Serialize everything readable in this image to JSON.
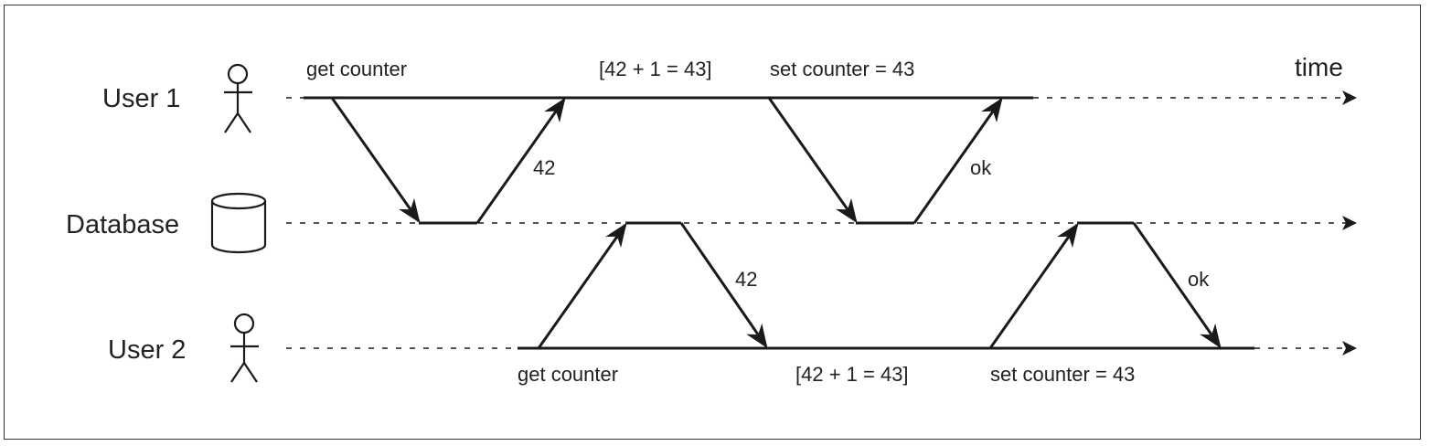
{
  "rows": {
    "user1": "User 1",
    "database": "Database",
    "user2": "User 2"
  },
  "axis": {
    "time": "time"
  },
  "user1_messages": {
    "get": "get counter",
    "compute": "[42 + 1 = 43]",
    "set": "set counter = 43",
    "response_get": "42",
    "response_set": "ok"
  },
  "user2_messages": {
    "get": "get counter",
    "compute": "[42 + 1 = 43]",
    "set": "set counter = 43",
    "response_get": "42",
    "response_set": "ok"
  },
  "colors": {
    "ink": "#1a1a1a",
    "frame": "#333333",
    "background": "#ffffff"
  }
}
